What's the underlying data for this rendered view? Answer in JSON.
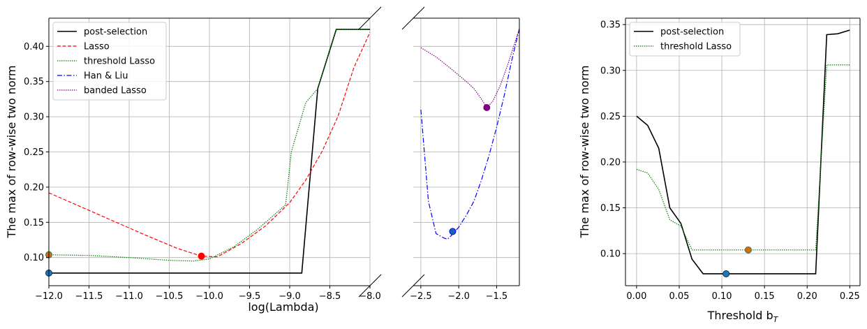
{
  "figure_texts": {
    "left_xlabel": "log(Lambda)",
    "left_ylabel": "The max of row-wise two norm",
    "right_xlabel_main": "Threshold b",
    "right_xlabel_sub": "T",
    "right_ylabel": "The max of row-wise two norm"
  },
  "chart_data": [
    {
      "type": "line",
      "panel": "left (broken x-axis, segment A)",
      "xlabel": "log(Lambda)",
      "ylabel": "The max of row-wise two norm",
      "xlim": [
        -12.0,
        -8.0
      ],
      "ylim": [
        0.06,
        0.44
      ],
      "x_ticks": [
        -12.0,
        -11.5,
        -11.0,
        -10.5,
        -10.0,
        -9.5,
        -9.0,
        -8.5,
        -8.0
      ],
      "x_tick_labels": [
        "−12.0",
        "−11.5",
        "−11.0",
        "−10.5",
        "−10.0",
        "−9.5",
        "−9.0",
        "−8.5",
        "−8.0"
      ],
      "y_ticks": [
        0.1,
        0.15,
        0.2,
        0.25,
        0.3,
        0.35,
        0.4
      ],
      "y_tick_labels": [
        "0.10",
        "0.15",
        "0.20",
        "0.25",
        "0.30",
        "0.35",
        "0.40"
      ],
      "grid": true,
      "legend": "top-left",
      "series": [
        {
          "name": "post-selection",
          "color": "#000000",
          "style": "solid",
          "x": [
            -12.0,
            -11.0,
            -10.0,
            -9.0,
            -8.85,
            -8.65,
            -8.42,
            -8.0
          ],
          "y": [
            0.078,
            0.078,
            0.078,
            0.078,
            0.078,
            0.34,
            0.424,
            0.424
          ]
        },
        {
          "name": "Lasso",
          "color": "#ff0000",
          "style": "dashed",
          "x": [
            -12.0,
            -11.6,
            -11.2,
            -10.8,
            -10.4,
            -10.1,
            -9.9,
            -9.6,
            -9.3,
            -9.0,
            -8.8,
            -8.6,
            -8.4,
            -8.2,
            -8.0
          ],
          "y": [
            0.192,
            0.172,
            0.152,
            0.132,
            0.113,
            0.102,
            0.101,
            0.12,
            0.145,
            0.178,
            0.21,
            0.25,
            0.3,
            0.37,
            0.42
          ]
        },
        {
          "name": "threshold Lasso",
          "color": "#008000",
          "style": "dotted",
          "x": [
            -12.0,
            -11.5,
            -11.0,
            -10.5,
            -10.2,
            -10.0,
            -9.7,
            -9.4,
            -9.2,
            -9.05,
            -8.98,
            -8.8,
            -8.65,
            -8.42,
            -8.0
          ],
          "y": [
            0.104,
            0.103,
            0.1,
            0.096,
            0.095,
            0.098,
            0.115,
            0.14,
            0.16,
            0.175,
            0.25,
            0.32,
            0.34,
            0.424,
            0.424
          ]
        },
        {
          "name": "Han & Liu",
          "color": "#0000ff",
          "style": "dashdot",
          "x": [],
          "y": []
        },
        {
          "name": "banded Lasso",
          "color": "#800080",
          "style": "dotted",
          "x": [],
          "y": []
        }
      ],
      "highlighted_points": [
        {
          "series": "post-selection",
          "x": -12.0,
          "y": 0.078
        },
        {
          "series": "threshold Lasso",
          "x": -12.0,
          "y": 0.104
        },
        {
          "series": "Lasso",
          "x": -10.1,
          "y": 0.102
        }
      ]
    },
    {
      "type": "line",
      "panel": "left (broken x-axis, segment B)",
      "xlim": [
        -2.6,
        -1.2
      ],
      "ylim": [
        0.06,
        0.44
      ],
      "x_ticks": [
        -2.5,
        -2.0,
        -1.5
      ],
      "x_tick_labels": [
        "−2.5",
        "−2.0",
        "−1.5"
      ],
      "grid": true,
      "series": [
        {
          "name": "Han & Liu",
          "color": "#0000ff",
          "style": "dashdot",
          "x": [
            -2.5,
            -2.4,
            -2.3,
            -2.2,
            -2.15,
            -2.1,
            -2.0,
            -1.9,
            -1.8,
            -1.7,
            -1.6,
            -1.5,
            -1.4,
            -1.3,
            -1.2
          ],
          "y": [
            0.31,
            0.18,
            0.134,
            0.128,
            0.126,
            0.131,
            0.143,
            0.16,
            0.18,
            0.21,
            0.245,
            0.285,
            0.33,
            0.38,
            0.425
          ]
        },
        {
          "name": "banded Lasso",
          "color": "#800080",
          "style": "dotted",
          "x": [
            -2.5,
            -2.3,
            -2.1,
            -1.9,
            -1.8,
            -1.7,
            -1.63,
            -1.55,
            -1.45,
            -1.35,
            -1.2
          ],
          "y": [
            0.398,
            0.385,
            0.368,
            0.35,
            0.34,
            0.325,
            0.313,
            0.322,
            0.345,
            0.375,
            0.425
          ]
        }
      ],
      "highlighted_points": [
        {
          "series": "Han & Liu",
          "x": -2.08,
          "y": 0.137
        },
        {
          "series": "banded Lasso",
          "x": -1.63,
          "y": 0.313
        }
      ]
    },
    {
      "type": "line",
      "panel": "right",
      "xlabel": "Threshold b_T",
      "ylabel": "The max of row-wise two norm",
      "xlim": [
        -0.013,
        0.262
      ],
      "ylim": [
        0.065,
        0.357
      ],
      "x_ticks": [
        0.0,
        0.05,
        0.1,
        0.15,
        0.2,
        0.25
      ],
      "x_tick_labels": [
        "0.00",
        "0.05",
        "0.10",
        "0.15",
        "0.20",
        "0.25"
      ],
      "y_ticks": [
        0.1,
        0.15,
        0.2,
        0.25,
        0.3,
        0.35
      ],
      "y_tick_labels": [
        "0.10",
        "0.15",
        "0.20",
        "0.25",
        "0.30",
        "0.35"
      ],
      "grid": true,
      "legend": "top-left",
      "series": [
        {
          "name": "post-selection",
          "color": "#000000",
          "style": "solid",
          "x": [
            0.0,
            0.013,
            0.026,
            0.039,
            0.052,
            0.065,
            0.078,
            0.105,
            0.15,
            0.2,
            0.21,
            0.223,
            0.236,
            0.25
          ],
          "y": [
            0.25,
            0.24,
            0.215,
            0.15,
            0.133,
            0.094,
            0.078,
            0.078,
            0.078,
            0.078,
            0.078,
            0.339,
            0.34,
            0.344
          ]
        },
        {
          "name": "threshold Lasso",
          "color": "#008000",
          "style": "dotted",
          "x": [
            0.0,
            0.013,
            0.026,
            0.039,
            0.052,
            0.065,
            0.078,
            0.13,
            0.2,
            0.21,
            0.223,
            0.25
          ],
          "y": [
            0.192,
            0.188,
            0.17,
            0.137,
            0.13,
            0.104,
            0.104,
            0.104,
            0.104,
            0.104,
            0.306,
            0.306
          ]
        }
      ],
      "highlighted_points": [
        {
          "series": "post-selection",
          "x": 0.105,
          "y": 0.078
        },
        {
          "series": "threshold Lasso",
          "x": 0.131,
          "y": 0.104
        }
      ]
    }
  ]
}
